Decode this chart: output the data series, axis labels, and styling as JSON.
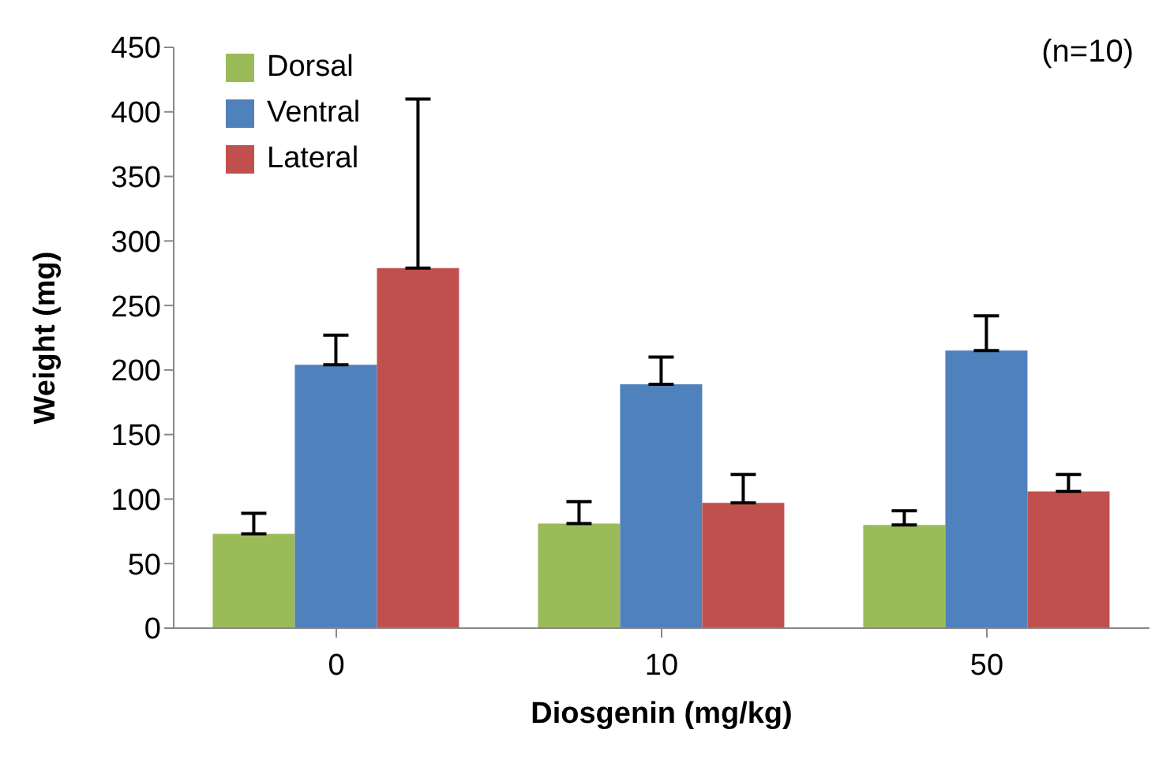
{
  "chart_data": {
    "type": "bar",
    "xlabel": "Diosgenin (mg/kg)",
    "ylabel": "Weight (mg)",
    "categories": [
      "0",
      "10",
      "50"
    ],
    "series": [
      {
        "name": "Dorsal",
        "color": "#9bbb59",
        "values": [
          73,
          81,
          80
        ],
        "errors": [
          [
            73,
            89
          ],
          [
            81,
            98
          ],
          [
            80,
            91
          ]
        ]
      },
      {
        "name": "Ventral",
        "color": "#4f81bd",
        "values": [
          204,
          189,
          215
        ],
        "errors": [
          [
            204,
            227
          ],
          [
            189,
            210
          ],
          [
            215,
            242
          ]
        ]
      },
      {
        "name": "Lateral",
        "color": "#c0504d",
        "values": [
          279,
          97,
          106
        ],
        "errors": [
          [
            279,
            410
          ],
          [
            97,
            119
          ],
          [
            106,
            119
          ]
        ]
      }
    ],
    "ylim": [
      0,
      450
    ],
    "yticks": [
      0,
      50,
      100,
      150,
      200,
      250,
      300,
      350,
      400,
      450
    ],
    "legend": "top left",
    "annotations": [
      "(n=10)"
    ]
  }
}
